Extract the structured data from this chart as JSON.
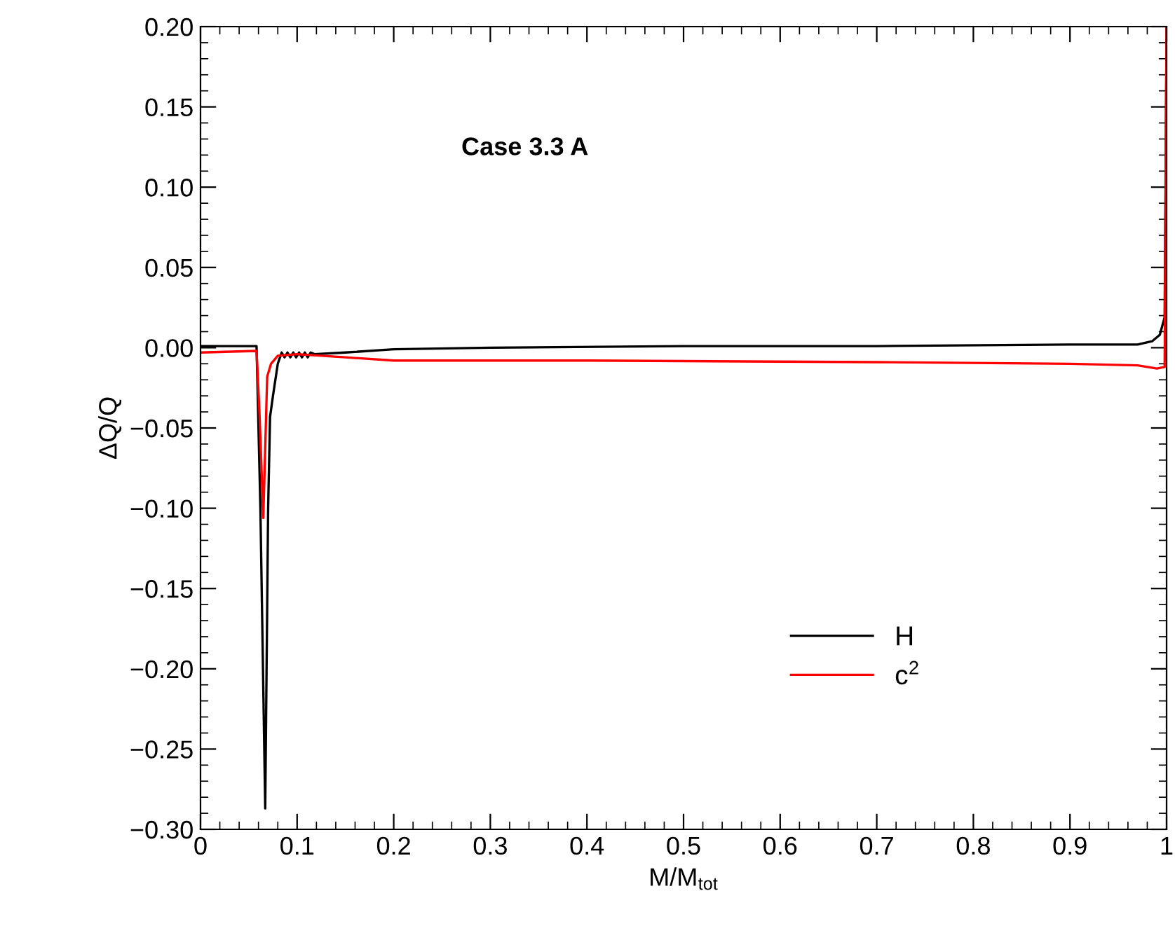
{
  "chart_data": {
    "type": "line",
    "xlabel": "M/M$_{tot}$",
    "ylabel": "ΔQ/Q",
    "annotations": [
      "Case 3.3 A"
    ],
    "xlim": [
      0,
      1
    ],
    "ylim": [
      -0.3,
      0.2
    ],
    "xticks": [
      0,
      0.1,
      0.2,
      0.3,
      0.4,
      0.5,
      0.6,
      0.7,
      0.8,
      0.9,
      1
    ],
    "yticks": [
      {
        "value": -0.3,
        "label": "−0.30"
      },
      {
        "value": -0.25,
        "label": "−0.25"
      },
      {
        "value": -0.2,
        "label": "−0.20"
      },
      {
        "value": -0.15,
        "label": "−0.15"
      },
      {
        "value": -0.1,
        "label": "−0.10"
      },
      {
        "value": -0.05,
        "label": "−0.05"
      },
      {
        "value": 0,
        "label": "0.00"
      },
      {
        "value": 0.05,
        "label": "0.05"
      },
      {
        "value": 0.1,
        "label": "0.10"
      },
      {
        "value": 0.15,
        "label": "0.15"
      },
      {
        "value": 0.2,
        "label": "0.20"
      }
    ],
    "grid": false,
    "legend": "bottom right",
    "line_style": "solid",
    "marker": "none",
    "series": [
      {
        "name": "H",
        "color": "#000000",
        "x": [
          0,
          0.058,
          0.062,
          0.067,
          0.07,
          0.072,
          0.075,
          0.08,
          0.084,
          0.087,
          0.09,
          0.093,
          0.096,
          0.099,
          0.102,
          0.105,
          0.108,
          0.111,
          0.114,
          0.118,
          0.15,
          0.2,
          0.3,
          0.5,
          0.7,
          0.9,
          0.97,
          0.985,
          0.993,
          0.998,
          1.0
        ],
        "values": [
          0.001,
          0.001,
          -0.1,
          -0.287,
          -0.1,
          -0.043,
          -0.03,
          -0.01,
          -0.003,
          -0.006,
          -0.003,
          -0.006,
          -0.003,
          -0.006,
          -0.003,
          -0.006,
          -0.003,
          -0.006,
          -0.003,
          -0.004,
          -0.003,
          -0.001,
          0,
          0.001,
          0.001,
          0.002,
          0.002,
          0.004,
          0.008,
          0.019,
          0.2
        ]
      },
      {
        "name": "c$^{2}$",
        "color": "#ff0000",
        "x": [
          0,
          0.058,
          0.061,
          0.065,
          0.069,
          0.073,
          0.08,
          0.1,
          0.15,
          0.2,
          0.4,
          0.7,
          0.9,
          0.97,
          0.99,
          0.998,
          1.0
        ],
        "values": [
          -0.003,
          -0.002,
          -0.04,
          -0.106,
          -0.018,
          -0.01,
          -0.005,
          -0.004,
          -0.006,
          -0.008,
          -0.008,
          -0.009,
          -0.01,
          -0.011,
          -0.013,
          -0.012,
          0.2
        ]
      }
    ]
  }
}
